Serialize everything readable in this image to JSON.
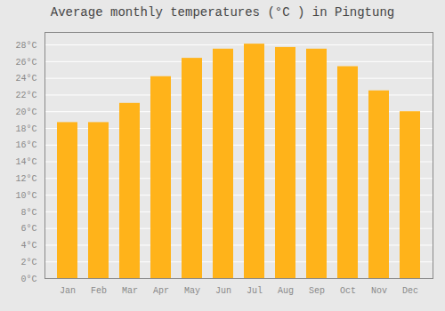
{
  "chart_data": {
    "type": "bar",
    "title": "Average monthly temperatures (°C ) in Pingtung",
    "categories": [
      "Jan",
      "Feb",
      "Mar",
      "Apr",
      "May",
      "Jun",
      "Jul",
      "Aug",
      "Sep",
      "Oct",
      "Nov",
      "Dec"
    ],
    "values": [
      18.7,
      18.7,
      21.0,
      24.2,
      26.4,
      27.5,
      28.1,
      27.7,
      27.5,
      25.4,
      22.5,
      20.0
    ],
    "color": "#ffb31a",
    "ylim": [
      0,
      29.5
    ],
    "yticks": [
      {
        "value": 0,
        "label": "0°C"
      },
      {
        "value": 2,
        "label": "2°C"
      },
      {
        "value": 4,
        "label": "4°C"
      },
      {
        "value": 6,
        "label": "6°C"
      },
      {
        "value": 8,
        "label": "8°C"
      },
      {
        "value": 10,
        "label": "10°C"
      },
      {
        "value": 12,
        "label": "12°C"
      },
      {
        "value": 14,
        "label": "14°C"
      },
      {
        "value": 16,
        "label": "16°C"
      },
      {
        "value": 18,
        "label": "18°C"
      },
      {
        "value": 20,
        "label": "20°C"
      },
      {
        "value": 22,
        "label": "22°C"
      },
      {
        "value": 24,
        "label": "24°C"
      },
      {
        "value": 26,
        "label": "26°C"
      },
      {
        "value": 28,
        "label": "28°C"
      }
    ],
    "grid": true
  }
}
